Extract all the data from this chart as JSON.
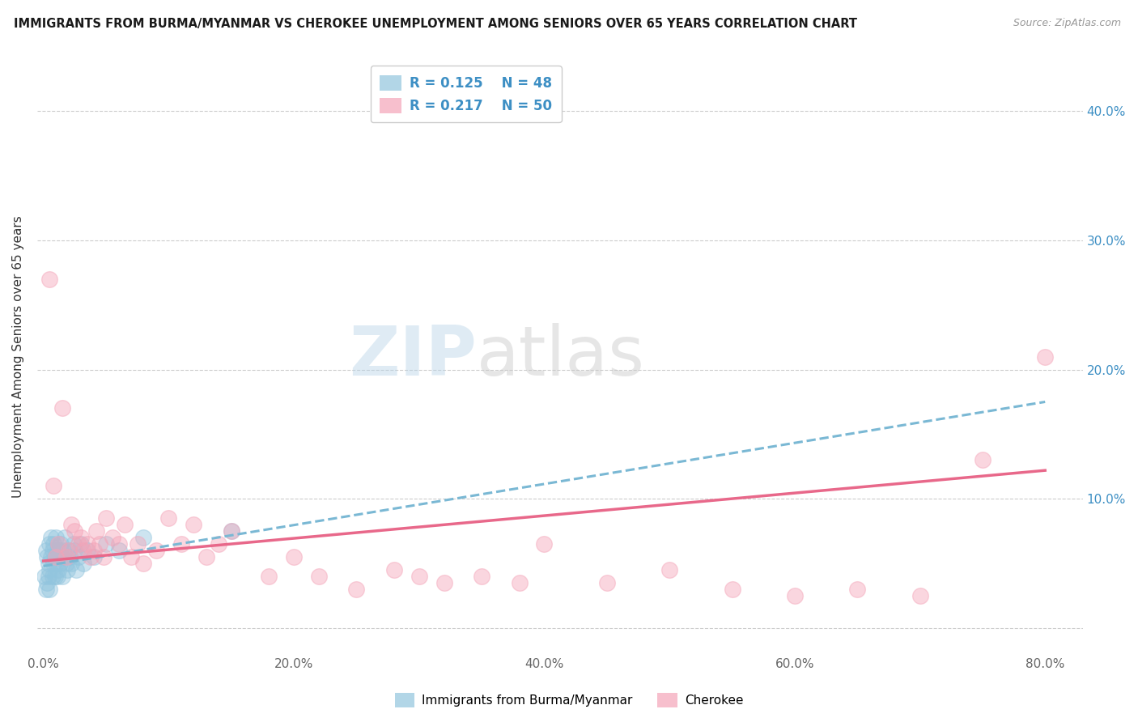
{
  "title": "IMMIGRANTS FROM BURMA/MYANMAR VS CHEROKEE UNEMPLOYMENT AMONG SENIORS OVER 65 YEARS CORRELATION CHART",
  "source": "Source: ZipAtlas.com",
  "ylabel": "Unemployment Among Seniors over 65 years",
  "xlim": [
    -0.005,
    0.83
  ],
  "ylim": [
    -0.02,
    0.44
  ],
  "xticks": [
    0.0,
    0.2,
    0.4,
    0.6,
    0.8
  ],
  "xticklabels": [
    "0.0%",
    "20.0%",
    "40.0%",
    "60.0%",
    "80.0%"
  ],
  "yticks_right": [
    0.0,
    0.1,
    0.2,
    0.3,
    0.4
  ],
  "ytick_right_labels": [
    "",
    "10.0%",
    "20.0%",
    "30.0%",
    "40.0%"
  ],
  "legend_R1": "R = 0.125",
  "legend_N1": "N = 48",
  "legend_R2": "R = 0.217",
  "legend_N2": "N = 50",
  "color_blue": "#92c5de",
  "color_pink": "#f4a4b8",
  "color_blue_line": "#7ab8d4",
  "color_pink_line": "#e8688a",
  "color_text_blue": "#3d8fc4",
  "watermark_zip": "ZIP",
  "watermark_atlas": "atlas",
  "blue_scatter_x": [
    0.001,
    0.002,
    0.002,
    0.003,
    0.003,
    0.004,
    0.004,
    0.005,
    0.005,
    0.005,
    0.006,
    0.006,
    0.007,
    0.007,
    0.008,
    0.008,
    0.009,
    0.009,
    0.01,
    0.01,
    0.011,
    0.011,
    0.012,
    0.012,
    0.013,
    0.013,
    0.014,
    0.015,
    0.015,
    0.016,
    0.017,
    0.018,
    0.019,
    0.02,
    0.021,
    0.022,
    0.024,
    0.025,
    0.026,
    0.028,
    0.03,
    0.032,
    0.035,
    0.04,
    0.05,
    0.06,
    0.08,
    0.15
  ],
  "blue_scatter_y": [
    0.04,
    0.06,
    0.03,
    0.055,
    0.035,
    0.05,
    0.04,
    0.065,
    0.045,
    0.03,
    0.07,
    0.055,
    0.06,
    0.04,
    0.065,
    0.05,
    0.055,
    0.04,
    0.07,
    0.05,
    0.06,
    0.04,
    0.055,
    0.045,
    0.06,
    0.05,
    0.065,
    0.055,
    0.04,
    0.06,
    0.07,
    0.05,
    0.045,
    0.06,
    0.055,
    0.05,
    0.065,
    0.06,
    0.045,
    0.055,
    0.065,
    0.05,
    0.06,
    0.055,
    0.065,
    0.06,
    0.07,
    0.075
  ],
  "pink_scatter_x": [
    0.005,
    0.008,
    0.01,
    0.012,
    0.015,
    0.018,
    0.02,
    0.022,
    0.025,
    0.028,
    0.03,
    0.032,
    0.035,
    0.038,
    0.04,
    0.042,
    0.045,
    0.048,
    0.05,
    0.055,
    0.06,
    0.065,
    0.07,
    0.075,
    0.08,
    0.09,
    0.1,
    0.11,
    0.12,
    0.13,
    0.14,
    0.15,
    0.18,
    0.2,
    0.22,
    0.25,
    0.28,
    0.3,
    0.32,
    0.35,
    0.38,
    0.4,
    0.45,
    0.5,
    0.55,
    0.6,
    0.65,
    0.7,
    0.75,
    0.8
  ],
  "pink_scatter_y": [
    0.27,
    0.11,
    0.055,
    0.065,
    0.17,
    0.055,
    0.06,
    0.08,
    0.075,
    0.065,
    0.07,
    0.06,
    0.065,
    0.055,
    0.06,
    0.075,
    0.065,
    0.055,
    0.085,
    0.07,
    0.065,
    0.08,
    0.055,
    0.065,
    0.05,
    0.06,
    0.085,
    0.065,
    0.08,
    0.055,
    0.065,
    0.075,
    0.04,
    0.055,
    0.04,
    0.03,
    0.045,
    0.04,
    0.035,
    0.04,
    0.035,
    0.065,
    0.035,
    0.045,
    0.03,
    0.025,
    0.03,
    0.025,
    0.13,
    0.21
  ]
}
